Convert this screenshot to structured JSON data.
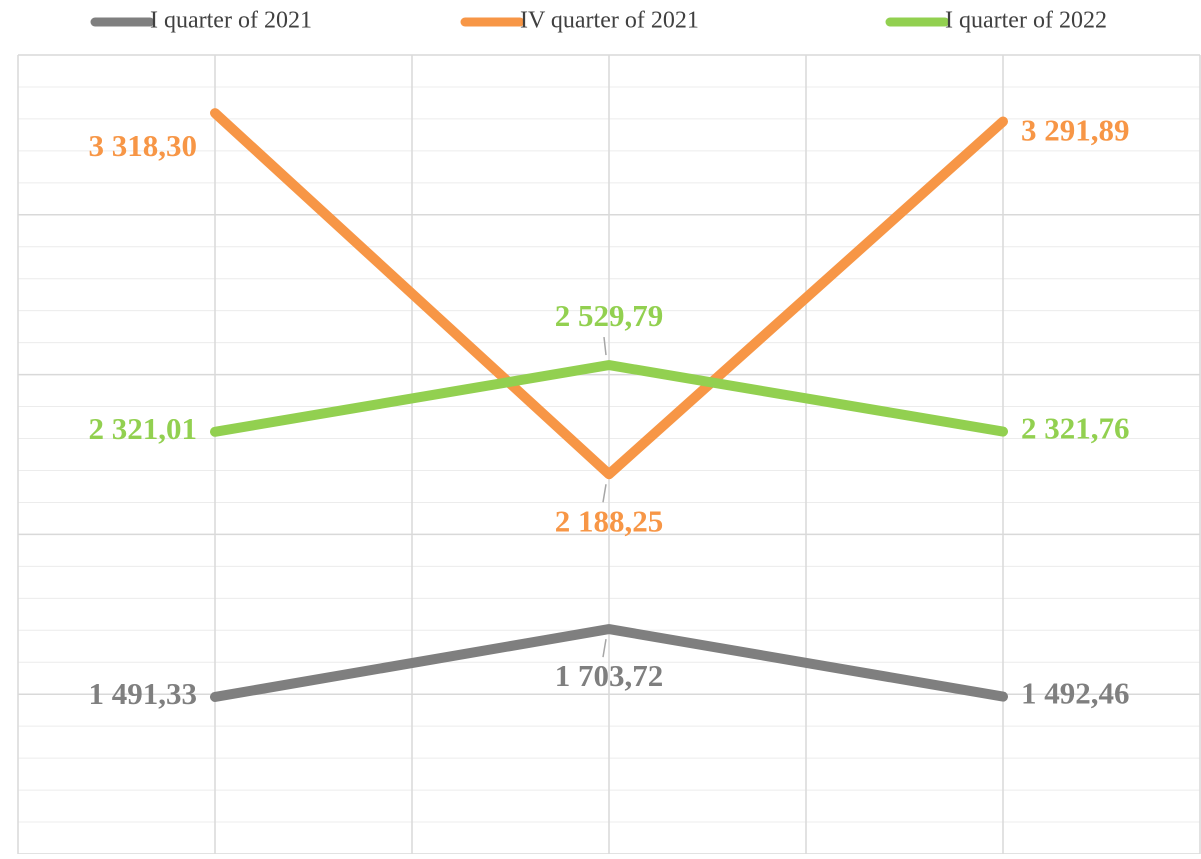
{
  "chart_data": {
    "type": "line",
    "categories": [
      null,
      null,
      null
    ],
    "series": [
      {
        "name": "I quarter of 2021",
        "color": "#7f7f7f",
        "values": [
          1491.33,
          1703.72,
          1492.46
        ],
        "value_labels": [
          "1 491,33",
          "1 703,72",
          "1 492,46"
        ]
      },
      {
        "name": "IV quarter of 2021",
        "color": "#f79646",
        "values": [
          3318.3,
          2188.25,
          3291.89
        ],
        "value_labels": [
          "3 318,30",
          "2 188,25",
          "3 291,89"
        ]
      },
      {
        "name": "I quarter of 2022",
        "color": "#92d050",
        "values": [
          2321.01,
          2529.79,
          2321.76
        ],
        "value_labels": [
          "2 321,01",
          "2 529,79",
          "2 321,76"
        ]
      }
    ],
    "ylim": [
      1000,
      3500
    ],
    "yticks": [
      1000,
      1500,
      2000,
      2500,
      3000,
      3500
    ],
    "minor_yticks": [
      1100,
      1200,
      1300,
      1400,
      1600,
      1700,
      1800,
      1900,
      2100,
      2200,
      2300,
      2400,
      2600,
      2700,
      2800,
      2900,
      3100,
      3200,
      3300,
      3400
    ],
    "grid": true,
    "legend": "top"
  }
}
